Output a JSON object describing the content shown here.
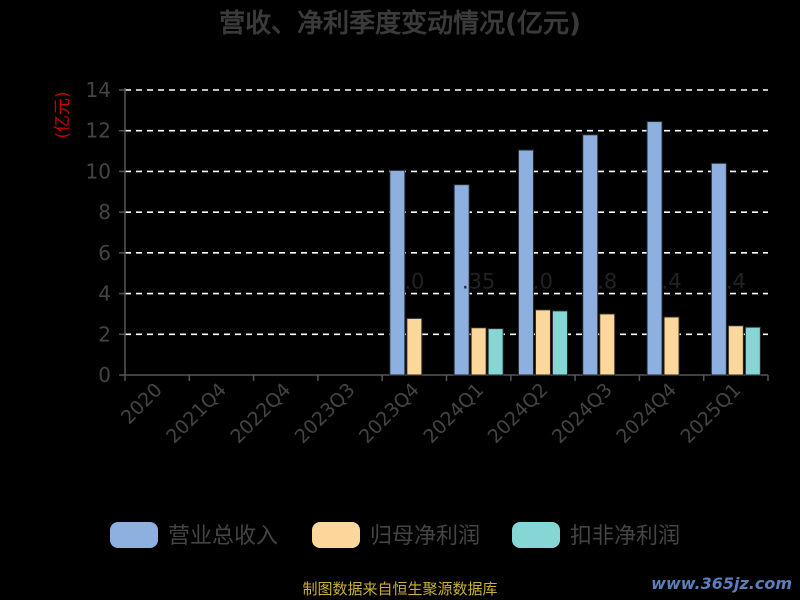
{
  "source_note": "制图数据来自恒生聚源数据库",
  "watermark": "www.365jz.com",
  "colors": {
    "title": "#3a3a3a",
    "ylabel": "#cc0000",
    "axis": "#555555",
    "grid": "#ffffff",
    "tick_text": "#444444",
    "legend_text": "#444444",
    "data_label": "#222222"
  },
  "chart_data": {
    "type": "bar",
    "title": "营收、净利季度变动情况(亿元)",
    "ylabel": "(亿元)",
    "ylim": [
      0,
      14
    ],
    "yticks": [
      0,
      2,
      4,
      6,
      8,
      10,
      12,
      14
    ],
    "grid": true,
    "legend_position": "bottom",
    "categories": [
      "2020",
      "2021Q4",
      "2022Q4",
      "2023Q3",
      "2023Q4",
      "2024Q1",
      "2024Q2",
      "2024Q3",
      "2024Q4",
      "2025Q1"
    ],
    "series": [
      {
        "name": "营业总收入",
        "color": "#8eb0e0",
        "values": [
          null,
          null,
          null,
          null,
          10.05,
          9.35,
          11.05,
          11.8,
          12.45,
          10.4
        ]
      },
      {
        "name": "归母净利润",
        "color": "#fcd79c",
        "values": [
          null,
          null,
          null,
          null,
          2.78,
          2.32,
          3.2,
          3.0,
          2.85,
          2.42
        ]
      },
      {
        "name": "扣非净利润",
        "color": "#86d6d6",
        "values": [
          null,
          null,
          null,
          null,
          null,
          2.28,
          3.15,
          null,
          null,
          2.35
        ]
      }
    ],
    "data_labels": [
      "",
      "",
      "",
      "",
      ".0",
      ".35",
      ".0",
      ".8",
      ".4",
      ".4"
    ]
  }
}
